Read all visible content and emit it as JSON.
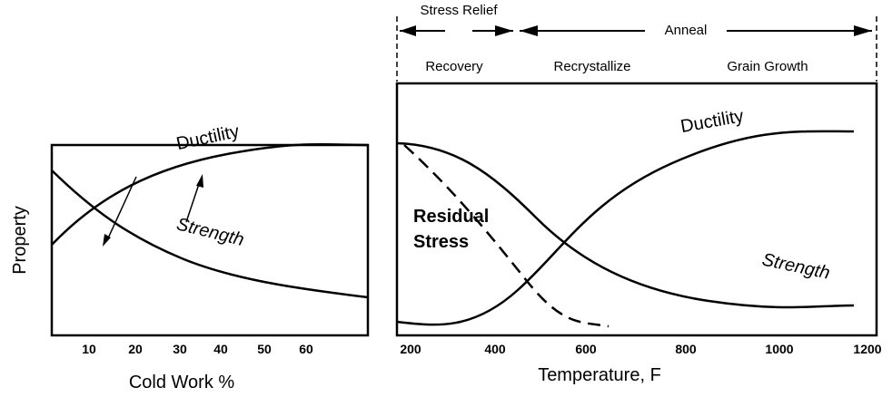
{
  "left": {
    "y_label": "Property",
    "x_label": "Cold Work %",
    "x_ticks": [
      10,
      20,
      30,
      40,
      50,
      60
    ],
    "curves": {
      "ductility": "Ductility",
      "strength": "Strength"
    }
  },
  "right": {
    "x_label": "Temperature, F",
    "x_ticks": [
      200,
      400,
      600,
      800,
      1000,
      1200
    ],
    "stages": {
      "stress_relief": "Stress Relief",
      "anneal": "Anneal",
      "recovery": "Recovery",
      "recrystallize": "Recrystallize",
      "grain_growth": "Grain Growth"
    },
    "curves": {
      "ductility": "Ductility",
      "strength": "Strength",
      "residual_stress": "Residual Stress"
    }
  }
}
